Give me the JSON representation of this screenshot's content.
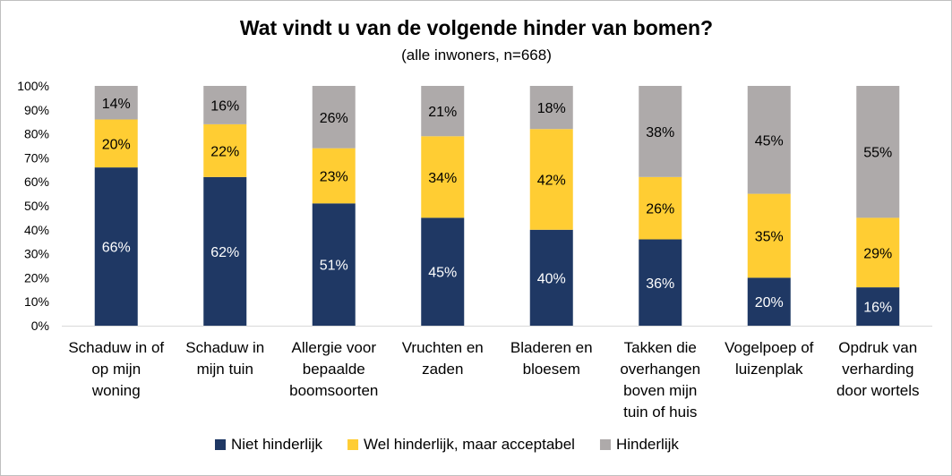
{
  "chart_data": {
    "type": "bar",
    "stacked": true,
    "percent": true,
    "title": "Wat vindt u van de volgende hinder van bomen?",
    "subtitle": "(alle inwoners, n=668)",
    "ylim": [
      0,
      100
    ],
    "yticks": [
      "0%",
      "10%",
      "20%",
      "30%",
      "40%",
      "50%",
      "60%",
      "70%",
      "80%",
      "90%",
      "100%"
    ],
    "categories": [
      [
        "Schaduw in of",
        "op mijn",
        "woning"
      ],
      [
        "Schaduw in",
        "mijn tuin"
      ],
      [
        "Allergie voor",
        "bepaalde",
        "boomsoorten"
      ],
      [
        "Vruchten en",
        "zaden"
      ],
      [
        "Bladeren en",
        "bloesem"
      ],
      [
        "Takken die",
        "overhangen",
        "boven mijn",
        "tuin of huis"
      ],
      [
        "Vogelpoep of",
        "luizenplak"
      ],
      [
        "Opdruk van",
        "verharding",
        "door wortels"
      ]
    ],
    "series": [
      {
        "name": "Niet hinderlijk",
        "color": "#1f3864",
        "label_color": "#ffffff",
        "values": [
          66,
          62,
          51,
          45,
          40,
          36,
          20,
          16
        ]
      },
      {
        "name": "Wel hinderlijk, maar acceptabel",
        "color": "#ffcd33",
        "label_color": "#000000",
        "values": [
          20,
          22,
          23,
          34,
          42,
          26,
          35,
          29
        ]
      },
      {
        "name": "Hinderlijk",
        "color": "#aeaaaa",
        "label_color": "#000000",
        "values": [
          14,
          16,
          26,
          21,
          18,
          38,
          45,
          55
        ]
      }
    ],
    "data_labels": [
      [
        "66%",
        "62%",
        "51%",
        "45%",
        "40%",
        "36%",
        "20%",
        "16%"
      ],
      [
        "20%",
        "22%",
        "23%",
        "34%",
        "42%",
        "26%",
        "35%",
        "29%"
      ],
      [
        "14%",
        "16%",
        "26%",
        "21%",
        "18%",
        "38%",
        "45%",
        "55%"
      ]
    ],
    "legend_position": "bottom",
    "grid": false
  }
}
